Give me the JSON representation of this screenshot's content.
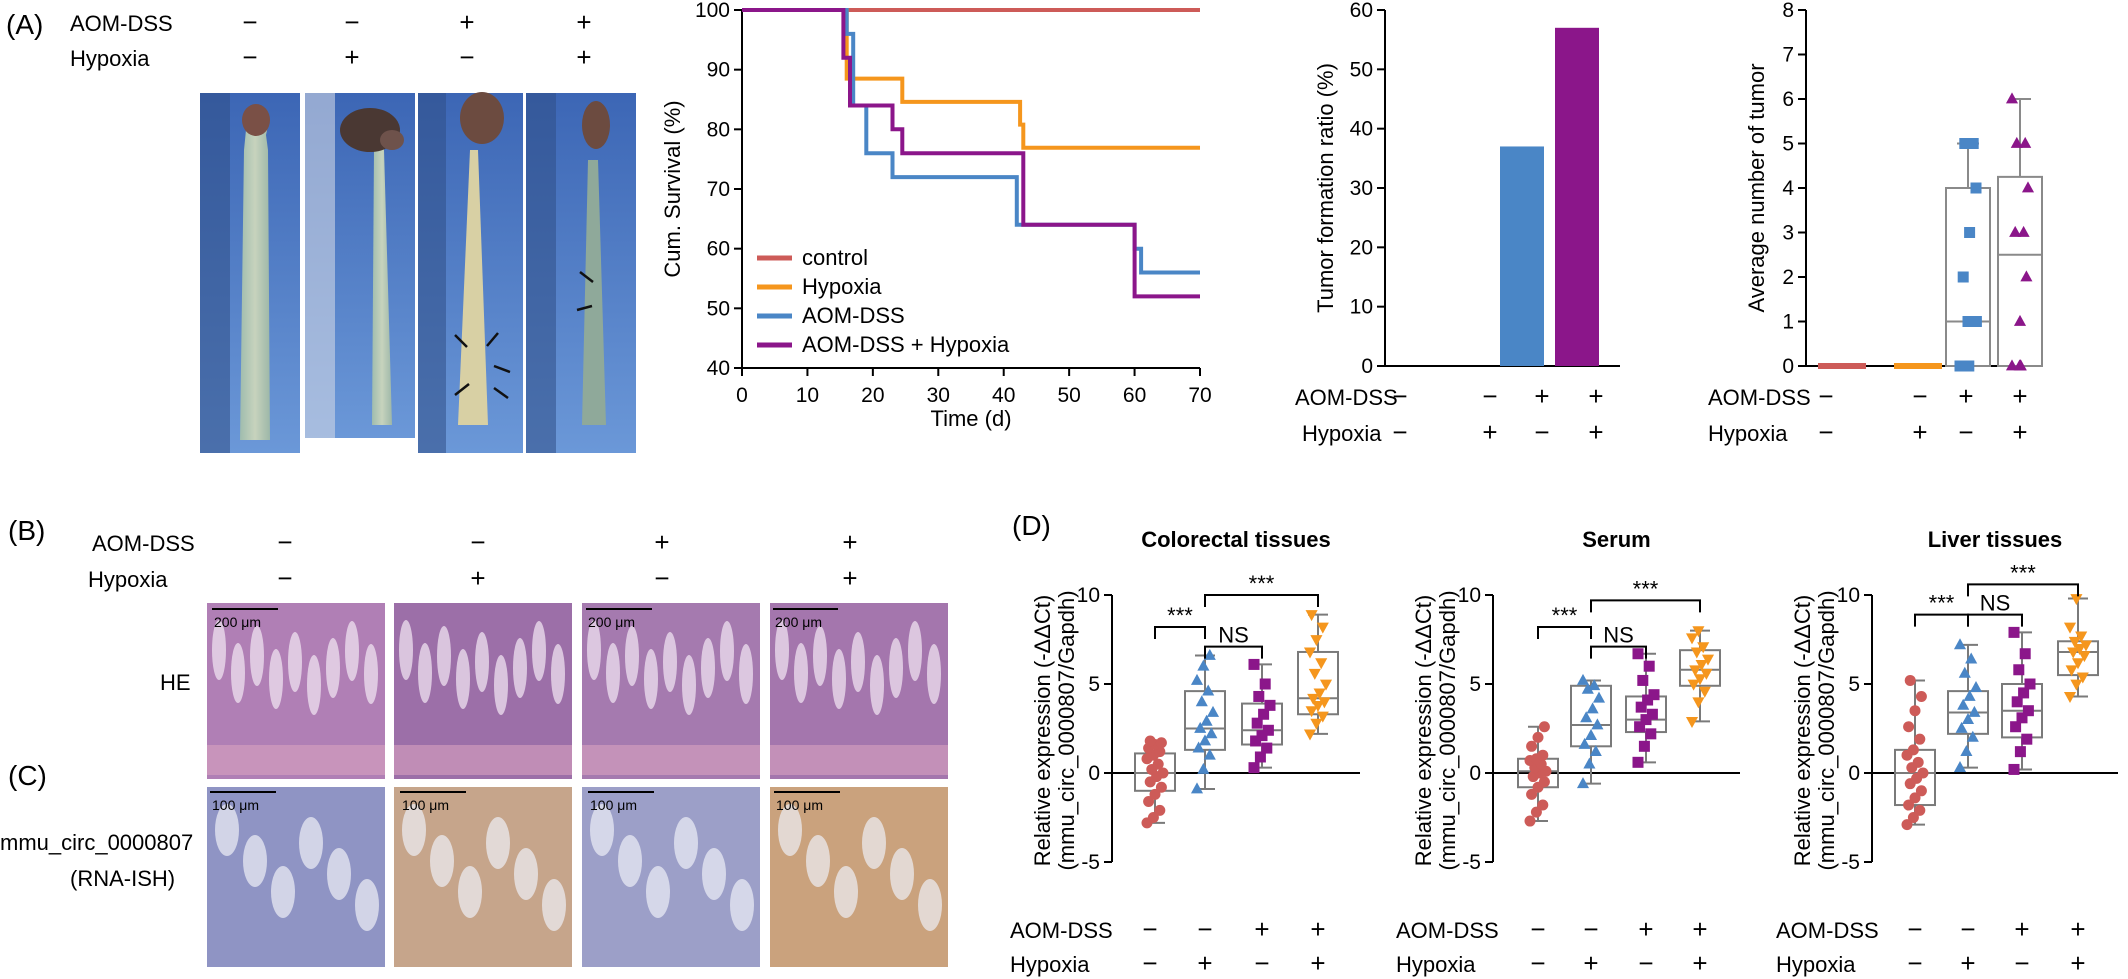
{
  "panels": {
    "A": "(A)",
    "B": "(B)",
    "C": "(C)",
    "D": "(D)"
  },
  "conditions": {
    "aom_label": "AOM-DSS",
    "hyp_label": "Hypoxia",
    "aom": [
      "−",
      "−",
      "+",
      "+"
    ],
    "hyp": [
      "−",
      "+",
      "−",
      "+"
    ]
  },
  "colon_photos": {
    "count": 4
  },
  "histology": {
    "row_labels": {
      "he": "HE",
      "ish_line1": "mmu_circ_0000807",
      "ish_line2": "(RNA-ISH)"
    },
    "scale_he": "200 μm",
    "scale_ish": "100 μm",
    "he_colors": [
      "#b07fb5",
      "#9c6fa8",
      "#a57aaf",
      "#a476ad"
    ],
    "ish_colors": [
      "#8f94c4",
      "#c6a58b",
      "#9c9fc8",
      "#caa27d"
    ]
  },
  "colors": {
    "control": "#cd5b58",
    "hypoxia": "#f5961d",
    "aom": "#4a86c6",
    "aom_hypoxia": "#8b168a",
    "box": "#7a7a7a"
  },
  "chart_data": [
    {
      "type": "line",
      "id": "survival",
      "xlabel": "Time (d)",
      "ylabel": "Cum. Survival (%)",
      "xlim": [
        0,
        70
      ],
      "ylim": [
        40,
        100
      ],
      "xticks": [
        0,
        10,
        20,
        30,
        40,
        50,
        60,
        70
      ],
      "yticks": [
        40,
        50,
        60,
        70,
        80,
        90,
        100
      ],
      "legend_position": "bottom-left",
      "series": [
        {
          "name": "control",
          "color": "#cd5b58",
          "steps": [
            [
              0,
              100
            ],
            [
              70,
              100
            ]
          ]
        },
        {
          "name": "Hypoxia",
          "color": "#f5961d",
          "steps": [
            [
              0,
              100
            ],
            [
              16,
              100
            ],
            [
              16,
              88.5
            ],
            [
              24.5,
              88.5
            ],
            [
              24.5,
              84.6
            ],
            [
              42.5,
              84.6
            ],
            [
              42.5,
              80.8
            ],
            [
              43,
              80.8
            ],
            [
              43,
              76.9
            ],
            [
              70,
              76.9
            ]
          ]
        },
        {
          "name": "AOM-DSS",
          "color": "#4a86c6",
          "steps": [
            [
              0,
              100
            ],
            [
              16,
              100
            ],
            [
              16,
              96
            ],
            [
              17,
              96
            ],
            [
              17,
              84
            ],
            [
              19,
              84
            ],
            [
              19,
              76
            ],
            [
              23,
              76
            ],
            [
              23,
              72
            ],
            [
              42,
              72
            ],
            [
              42,
              64
            ],
            [
              60,
              64
            ],
            [
              60,
              60
            ],
            [
              61,
              60
            ],
            [
              61,
              56
            ],
            [
              70,
              56
            ]
          ]
        },
        {
          "name": "AOM-DSS + Hypoxia",
          "color": "#8b168a",
          "steps": [
            [
              0,
              100
            ],
            [
              15.5,
              100
            ],
            [
              15.5,
              92
            ],
            [
              16.5,
              92
            ],
            [
              16.5,
              84
            ],
            [
              23,
              84
            ],
            [
              23,
              80
            ],
            [
              24.5,
              80
            ],
            [
              24.5,
              76
            ],
            [
              43,
              76
            ],
            [
              43,
              64
            ],
            [
              60,
              64
            ],
            [
              60,
              52
            ],
            [
              70,
              52
            ]
          ]
        }
      ]
    },
    {
      "type": "bar",
      "id": "tumor_ratio",
      "ylabel": "Tumor formation ratio (%)",
      "ylim": [
        0,
        60
      ],
      "yticks": [
        0,
        10,
        20,
        30,
        40,
        50,
        60
      ],
      "values": [
        0,
        0,
        37,
        57
      ],
      "colors": [
        "#cd5b58",
        "#f5961d",
        "#4a86c6",
        "#8b168a"
      ]
    },
    {
      "type": "box",
      "id": "tumor_number",
      "ylabel": "Average number of tumor",
      "ylim": [
        0,
        8
      ],
      "yticks": [
        0,
        1,
        2,
        3,
        4,
        5,
        6,
        7,
        8
      ],
      "groups": [
        {
          "color": "#cd5b58",
          "marker": "circle",
          "min": 0,
          "q1": 0,
          "median": 0,
          "q3": 0,
          "max": 0,
          "points": [
            0,
            0,
            0,
            0,
            0,
            0
          ]
        },
        {
          "color": "#f5961d",
          "marker": "circle",
          "min": 0,
          "q1": 0,
          "median": 0,
          "q3": 0,
          "max": 0,
          "points": [
            0,
            0,
            0,
            0,
            0,
            0
          ]
        },
        {
          "color": "#4a86c6",
          "marker": "square",
          "min": 0,
          "q1": 0,
          "median": 1,
          "q3": 4,
          "max": 5,
          "points": [
            0,
            0,
            0,
            0,
            1,
            1,
            2,
            3,
            4,
            5,
            5
          ]
        },
        {
          "color": "#8b168a",
          "marker": "triangle",
          "min": 0,
          "q1": 0,
          "median": 2.5,
          "q3": 4.25,
          "max": 6,
          "points": [
            0,
            0,
            0,
            0,
            1,
            2,
            3,
            3,
            4,
            5,
            5,
            6
          ]
        }
      ]
    },
    {
      "type": "box",
      "id": "expr_colorectal",
      "title": "Colorectal tissues",
      "ylabel_line1": "Relative expression (-ΔΔCt)",
      "ylabel_line2": "(mmu_circ_0000807/Gapdh)",
      "ylim": [
        -5,
        10
      ],
      "yticks": [
        -5,
        0,
        5,
        10
      ],
      "sig": [
        {
          "a": 0,
          "b": 1,
          "label": "***",
          "y": 8.2
        },
        {
          "a": 1,
          "b": 2,
          "label": "NS",
          "y": 7.1
        },
        {
          "a": 1,
          "b": 3,
          "label": "***",
          "y": 10.0
        }
      ],
      "groups": [
        {
          "color": "#cd5b58",
          "marker": "circle",
          "min": -2.8,
          "q1": -1.0,
          "median": 0.0,
          "q3": 1.1,
          "max": 1.8,
          "points": [
            -2.8,
            -2.5,
            -2.1,
            -1.6,
            -1.2,
            -0.8,
            -0.5,
            -0.2,
            0,
            0.2,
            0.5,
            0.8,
            1.0,
            1.2,
            1.4,
            1.6,
            1.7,
            1.8
          ]
        },
        {
          "color": "#4a86c6",
          "marker": "triangle",
          "min": -0.9,
          "q1": 1.3,
          "median": 2.5,
          "q3": 4.6,
          "max": 6.6,
          "points": [
            -0.9,
            0.2,
            1.0,
            1.4,
            1.8,
            2.2,
            2.5,
            2.9,
            3.4,
            4.0,
            4.6,
            5.2,
            6.0,
            6.6
          ]
        },
        {
          "color": "#8b168a",
          "marker": "square",
          "min": 0.3,
          "q1": 1.6,
          "median": 2.4,
          "q3": 3.9,
          "max": 6.1,
          "points": [
            0.3,
            0.9,
            1.4,
            1.8,
            2.1,
            2.4,
            2.8,
            3.3,
            3.8,
            4.3,
            5.0,
            6.1
          ]
        },
        {
          "color": "#f5961d",
          "marker": "triangle-down",
          "min": 2.2,
          "q1": 3.3,
          "median": 4.2,
          "q3": 6.8,
          "max": 8.9,
          "points": [
            2.2,
            2.8,
            3.2,
            3.5,
            3.8,
            4.0,
            4.2,
            4.5,
            5.0,
            5.6,
            6.2,
            6.8,
            7.5,
            8.2,
            8.9
          ]
        }
      ]
    },
    {
      "type": "box",
      "id": "expr_serum",
      "title": "Serum",
      "ylabel_line1": "Relative expression (-ΔΔCt)",
      "ylabel_line2": "(mmu_circ_0000807/Gapdh)",
      "ylim": [
        -5,
        10
      ],
      "yticks": [
        -5,
        0,
        5,
        10
      ],
      "sig": [
        {
          "a": 0,
          "b": 1,
          "label": "***",
          "y": 8.2
        },
        {
          "a": 1,
          "b": 2,
          "label": "NS",
          "y": 7.1
        },
        {
          "a": 1,
          "b": 3,
          "label": "***",
          "y": 9.7
        }
      ],
      "groups": [
        {
          "color": "#cd5b58",
          "marker": "circle",
          "min": -2.7,
          "q1": -0.8,
          "median": 0.1,
          "q3": 0.8,
          "max": 2.6,
          "points": [
            -2.7,
            -2.2,
            -1.8,
            -1.2,
            -0.8,
            -0.5,
            -0.2,
            0,
            0.1,
            0.3,
            0.5,
            0.7,
            0.8,
            1.0,
            1.5,
            2.0,
            2.6
          ]
        },
        {
          "color": "#4a86c6",
          "marker": "triangle",
          "min": -0.6,
          "q1": 1.5,
          "median": 2.7,
          "q3": 4.9,
          "max": 5.2,
          "points": [
            -0.6,
            0.5,
            1.2,
            1.6,
            2.1,
            2.7,
            3.1,
            3.6,
            4.2,
            4.7,
            4.9,
            5.2
          ]
        },
        {
          "color": "#8b168a",
          "marker": "square",
          "min": 0.6,
          "q1": 2.3,
          "median": 3.0,
          "q3": 4.3,
          "max": 6.7,
          "points": [
            0.6,
            1.5,
            2.2,
            2.6,
            3.0,
            3.3,
            3.7,
            4.1,
            4.4,
            5.2,
            6.0,
            6.7
          ]
        },
        {
          "color": "#f5961d",
          "marker": "triangle-down",
          "min": 2.9,
          "q1": 4.9,
          "median": 5.8,
          "q3": 6.9,
          "max": 8.0,
          "points": [
            2.9,
            4.0,
            4.6,
            5.0,
            5.3,
            5.6,
            5.8,
            6.1,
            6.4,
            6.8,
            7.1,
            7.6,
            8.0
          ]
        }
      ]
    },
    {
      "type": "box",
      "id": "expr_liver",
      "title": "Liver tissues",
      "ylabel_line1": "Relative expression (-ΔΔCt)",
      "ylabel_line2": "(mmu_circ_0000807/Gapdh)",
      "ylim": [
        -5,
        10
      ],
      "yticks": [
        -5,
        0,
        5,
        10
      ],
      "sig": [
        {
          "a": 0,
          "b": 1,
          "label": "***",
          "y": 8.9
        },
        {
          "a": 1,
          "b": 2,
          "label": "NS",
          "y": 8.9
        },
        {
          "a": 1,
          "b": 3,
          "label": "***",
          "y": 10.6
        }
      ],
      "groups": [
        {
          "color": "#cd5b58",
          "marker": "circle",
          "min": -2.9,
          "q1": -1.8,
          "median": 0.0,
          "q3": 1.3,
          "max": 5.2,
          "points": [
            -2.9,
            -2.5,
            -2.1,
            -1.8,
            -1.4,
            -1.0,
            -0.6,
            -0.3,
            0,
            0.3,
            0.6,
            1.0,
            1.3,
            1.9,
            2.6,
            3.5,
            4.3,
            5.2
          ]
        },
        {
          "color": "#4a86c6",
          "marker": "triangle",
          "min": 0.3,
          "q1": 2.2,
          "median": 3.4,
          "q3": 4.6,
          "max": 7.2,
          "points": [
            0.3,
            1.2,
            2.0,
            2.5,
            3.0,
            3.4,
            3.8,
            4.3,
            4.8,
            5.6,
            6.4,
            7.2
          ]
        },
        {
          "color": "#8b168a",
          "marker": "square",
          "min": 0.2,
          "q1": 2.0,
          "median": 3.5,
          "q3": 5.0,
          "max": 7.9,
          "points": [
            0.2,
            1.2,
            1.9,
            2.6,
            3.1,
            3.5,
            4.0,
            4.5,
            5.0,
            5.8,
            6.7,
            7.9
          ]
        },
        {
          "color": "#f5961d",
          "marker": "triangle-down",
          "min": 4.3,
          "q1": 5.5,
          "median": 6.8,
          "q3": 7.4,
          "max": 9.8,
          "points": [
            4.3,
            5.0,
            5.4,
            5.8,
            6.2,
            6.6,
            6.8,
            7.0,
            7.2,
            7.4,
            7.7,
            8.2,
            9.8
          ]
        }
      ]
    }
  ]
}
